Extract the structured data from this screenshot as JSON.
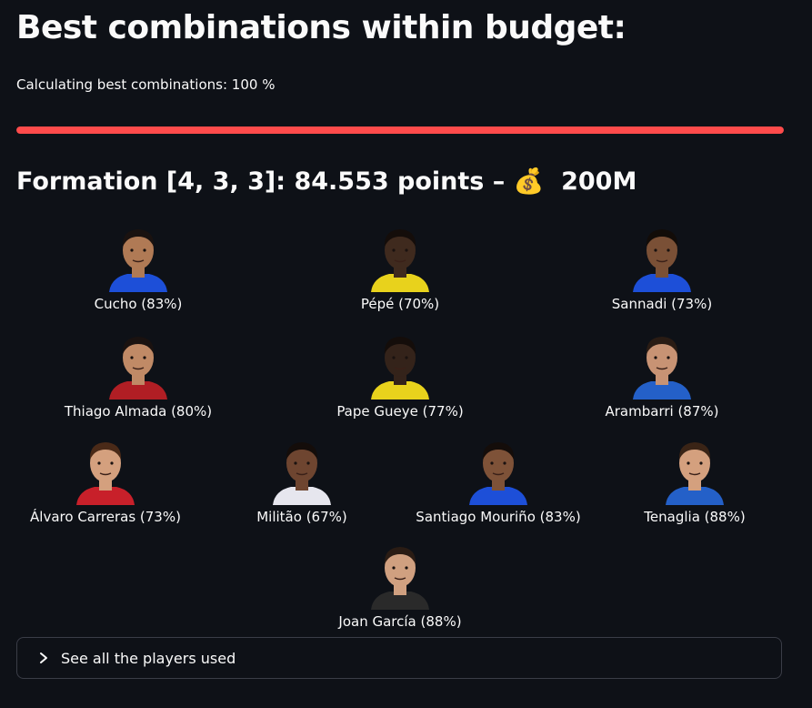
{
  "title": "Best combinations within budget:",
  "progress": {
    "text": "Calculating best combinations: 100 %",
    "value": 100,
    "color": "#ff4b4b"
  },
  "formation": {
    "label": "Formation [4, 3, 3]: 84.553 points – ",
    "icon": "money-bag-icon",
    "emoji": "💰",
    "budget": "200M"
  },
  "players": [
    {
      "label": "Cucho (83%)",
      "kit": "#1d4fd8",
      "skin": "#b07a55",
      "hair": "#1a1210"
    },
    {
      "label": "Pépé (70%)",
      "kit": "#e8d21c",
      "skin": "#3f2a1e",
      "hair": "#140d0a"
    },
    {
      "label": "Sannadi (73%)",
      "kit": "#1d4fd8",
      "skin": "#7a5036",
      "hair": "#120c08"
    },
    {
      "label": "Thiago Almada (80%)",
      "kit": "#b01e24",
      "skin": "#c08a66",
      "hair": "#1a1210"
    },
    {
      "label": "Pape Gueye (77%)",
      "kit": "#e8d21c",
      "skin": "#34231a",
      "hair": "#140d0a"
    },
    {
      "label": "Arambarri (87%)",
      "kit": "#2460c8",
      "skin": "#c89374",
      "hair": "#2a1c14"
    },
    {
      "label": "Álvaro Carreras (73%)",
      "kit": "#c8202a",
      "skin": "#d4a07e",
      "hair": "#4a2a18"
    },
    {
      "label": "Militão (67%)",
      "kit": "#e6e6ee",
      "skin": "#6e4530",
      "hair": "#140d0a"
    },
    {
      "label": "Santiago Mouriño (83%)",
      "kit": "#1d4fd8",
      "skin": "#7e5238",
      "hair": "#140d0a"
    },
    {
      "label": "Tenaglia (88%)",
      "kit": "#2460c8",
      "skin": "#d4a07e",
      "hair": "#3a2416"
    },
    {
      "label": "Joan García (88%)",
      "kit": "#2a2a2a",
      "skin": "#d0a080",
      "hair": "#2a1c14"
    }
  ],
  "expander": {
    "label": "See all the players used",
    "icon": "chevron-right-icon"
  }
}
